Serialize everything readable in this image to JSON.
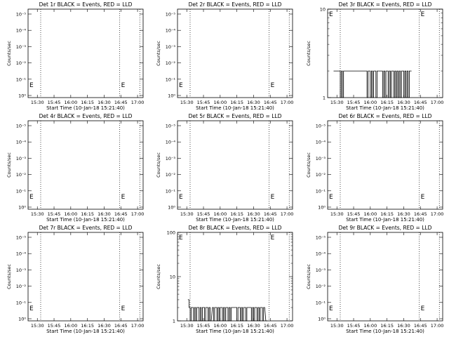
{
  "page": {
    "background": "#ffffff",
    "foreground": "#000000"
  },
  "chart_data": [
    {
      "type": "line",
      "title": "Det 1r BLACK = Events, RED = LLD",
      "xlabel": "Start Time (10-Jan-18 15:21:40)",
      "ylabel": "Counts/sec",
      "x_ticks": [
        "15:30",
        "15:45",
        "16:00",
        "16:15",
        "16:30",
        "16:45",
        "17:00"
      ],
      "xlim": [
        "15:21:40",
        "17:05:00"
      ],
      "y_scale": "log",
      "y_ticks": [
        "10⁰",
        "10⁻¹",
        "10⁻²",
        "10⁻³",
        "10⁻⁴",
        "10⁻⁵"
      ],
      "vlines": [
        "15:33",
        "16:44",
        "17:02"
      ],
      "markers": [
        "E",
        "E"
      ],
      "series": [
        {
          "name": "Events",
          "color": "#000000",
          "x": [],
          "y": []
        }
      ]
    },
    {
      "type": "line",
      "title": "Det 2r BLACK = Events, RED = LLD",
      "xlabel": "Start Time (10-Jan-18 15:21:40)",
      "ylabel": "Counts/sec",
      "x_ticks": [
        "15:30",
        "15:45",
        "16:00",
        "16:15",
        "16:30",
        "16:45",
        "17:00"
      ],
      "xlim": [
        "15:21:40",
        "17:05:00"
      ],
      "y_scale": "log",
      "y_ticks": [
        "10⁰",
        "10⁻¹",
        "10⁻²",
        "10⁻³",
        "10⁻⁴",
        "10⁻⁵"
      ],
      "vlines": [
        "15:33",
        "16:44",
        "17:02"
      ],
      "markers": [
        "E",
        "E"
      ],
      "series": [
        {
          "name": "Events",
          "color": "#000000",
          "x": [],
          "y": []
        }
      ]
    },
    {
      "type": "line",
      "title": "Det 3r BLACK = Events, RED = LLD",
      "xlabel": "Start Time (10-Jan-18 15:21:40)",
      "ylabel": "Counts/sec",
      "x_ticks": [
        "15:30",
        "15:45",
        "16:00",
        "16:15",
        "16:30",
        "16:45",
        "17:00"
      ],
      "xlim": [
        "15:21:40",
        "17:05:00"
      ],
      "y_scale": "log",
      "y_ticks": [
        "1",
        "10"
      ],
      "ylim": [
        1,
        10
      ],
      "vlines": [
        "15:33",
        "16:44",
        "17:02"
      ],
      "markers": [
        "E",
        "E"
      ],
      "series": [
        {
          "name": "Events",
          "color": "#000000",
          "x": [
            "15:27",
            "15:28",
            "15:29",
            "15:32",
            "15:33",
            "15:34",
            "15:35",
            "15:36",
            "15:56",
            "15:57",
            "15:58",
            "15:59",
            "16:00",
            "16:01",
            "16:02",
            "16:03",
            "16:04",
            "16:05",
            "16:06",
            "16:07",
            "16:10",
            "16:11",
            "16:12",
            "16:13",
            "16:14",
            "16:15",
            "16:16",
            "16:17",
            "16:18",
            "16:19",
            "16:20",
            "16:21",
            "16:22",
            "16:23",
            "16:24",
            "16:25",
            "16:26",
            "16:27",
            "16:28",
            "16:29",
            "16:30",
            "16:31",
            "16:32",
            "16:33",
            "16:34",
            "16:35",
            "16:36"
          ],
          "y": [
            2,
            2,
            2,
            2,
            1,
            2,
            1,
            2,
            2,
            1,
            2,
            2,
            1,
            2,
            1,
            2,
            2,
            1,
            2,
            2,
            2,
            1,
            2,
            1,
            2,
            2,
            1,
            2,
            1,
            2,
            2,
            1,
            2,
            1,
            2,
            1,
            2,
            1,
            2,
            2,
            1,
            2,
            1,
            2,
            1,
            2,
            2
          ]
        }
      ]
    },
    {
      "type": "line",
      "title": "Det 4r BLACK = Events, RED = LLD",
      "xlabel": "Start Time (10-Jan-18 15:21:40)",
      "ylabel": "Counts/sec",
      "x_ticks": [
        "15:30",
        "15:45",
        "16:00",
        "16:15",
        "16:30",
        "16:45",
        "17:00"
      ],
      "xlim": [
        "15:21:40",
        "17:05:00"
      ],
      "y_scale": "log",
      "y_ticks": [
        "10⁰",
        "10⁻¹",
        "10⁻²",
        "10⁻³",
        "10⁻⁴",
        "10⁻⁵"
      ],
      "vlines": [
        "15:33",
        "16:44",
        "17:02"
      ],
      "markers": [
        "E",
        "E"
      ],
      "series": [
        {
          "name": "Events",
          "color": "#000000",
          "x": [],
          "y": []
        }
      ]
    },
    {
      "type": "line",
      "title": "Det 5r BLACK = Events, RED = LLD",
      "xlabel": "Start Time (10-Jan-18 15:21:40)",
      "ylabel": "Counts/sec",
      "x_ticks": [
        "15:30",
        "15:45",
        "16:00",
        "16:15",
        "16:30",
        "16:45",
        "17:00"
      ],
      "xlim": [
        "15:21:40",
        "17:05:00"
      ],
      "y_scale": "log",
      "y_ticks": [
        "10⁰",
        "10⁻¹",
        "10⁻²",
        "10⁻³",
        "10⁻⁴",
        "10⁻⁵"
      ],
      "vlines": [
        "15:33",
        "16:44",
        "17:02"
      ],
      "markers": [
        "E",
        "E"
      ],
      "series": [
        {
          "name": "Events",
          "color": "#000000",
          "x": [],
          "y": []
        }
      ]
    },
    {
      "type": "line",
      "title": "Det 6r BLACK = Events, RED = LLD",
      "xlabel": "Start Time (10-Jan-18 15:21:40)",
      "ylabel": "Counts/sec",
      "x_ticks": [
        "15:30",
        "15:45",
        "16:00",
        "16:15",
        "16:30",
        "16:45",
        "17:00"
      ],
      "xlim": [
        "15:21:40",
        "17:05:00"
      ],
      "y_scale": "log",
      "y_ticks": [
        "10⁰",
        "10⁻¹",
        "10⁻²",
        "10⁻³",
        "10⁻⁴",
        "10⁻⁵"
      ],
      "vlines": [
        "15:33",
        "16:44",
        "17:02"
      ],
      "markers": [
        "E",
        "E"
      ],
      "series": [
        {
          "name": "Events",
          "color": "#000000",
          "x": [],
          "y": []
        }
      ]
    },
    {
      "type": "line",
      "title": "Det 7r BLACK = Events, RED = LLD",
      "xlabel": "Start Time (10-Jan-18 15:21:40)",
      "ylabel": "Counts/sec",
      "x_ticks": [
        "15:30",
        "15:45",
        "16:00",
        "16:15",
        "16:30",
        "16:45",
        "17:00"
      ],
      "xlim": [
        "15:21:40",
        "17:05:00"
      ],
      "y_scale": "log",
      "y_ticks": [
        "10⁰",
        "10⁻¹",
        "10⁻²",
        "10⁻³",
        "10⁻⁴",
        "10⁻⁵"
      ],
      "vlines": [
        "15:33",
        "16:44",
        "17:02"
      ],
      "markers": [
        "E",
        "E"
      ],
      "series": [
        {
          "name": "Events",
          "color": "#000000",
          "x": [],
          "y": []
        }
      ]
    },
    {
      "type": "line",
      "title": "Det 8r BLACK = Events, RED = LLD",
      "xlabel": "Start Time (10-Jan-18 15:21:40)",
      "ylabel": "Counts/sec",
      "x_ticks": [
        "15:30",
        "15:45",
        "16:00",
        "16:15",
        "16:30",
        "16:45",
        "17:00"
      ],
      "xlim": [
        "15:21:40",
        "17:05:00"
      ],
      "y_scale": "log",
      "y_ticks": [
        "1",
        "10",
        "100"
      ],
      "ylim": [
        1,
        100
      ],
      "vlines": [
        "15:33",
        "16:44",
        "17:02"
      ],
      "markers": [
        "E",
        "E"
      ],
      "series": [
        {
          "name": "Events",
          "color": "#000000",
          "x": [
            "15:31",
            "15:32",
            "15:33",
            "15:34",
            "15:35",
            "15:36",
            "15:37",
            "15:38",
            "15:39",
            "15:40",
            "15:41",
            "15:42",
            "15:43",
            "15:44",
            "15:45",
            "15:46",
            "15:47",
            "15:48",
            "15:49",
            "15:50",
            "15:51",
            "15:53",
            "15:54",
            "15:55",
            "15:56",
            "15:57",
            "15:58",
            "15:59",
            "16:00",
            "16:01",
            "16:02",
            "16:03",
            "16:04",
            "16:05",
            "16:06",
            "16:07",
            "16:08",
            "16:09",
            "16:10",
            "16:11",
            "16:14",
            "16:15",
            "16:16",
            "16:17",
            "16:18",
            "16:19",
            "16:20",
            "16:21",
            "16:22",
            "16:23",
            "16:24",
            "16:25",
            "16:27",
            "16:28",
            "16:29",
            "16:30",
            "16:31",
            "16:32",
            "16:33",
            "16:34",
            "16:35",
            "16:36",
            "16:37",
            "16:38",
            "16:39",
            "16:41"
          ],
          "y": [
            3,
            2,
            1,
            2,
            2,
            1,
            2,
            1,
            2,
            2,
            1,
            2,
            1,
            2,
            2,
            1,
            2,
            2,
            1,
            2,
            1,
            2,
            1,
            2,
            2,
            1,
            2,
            1,
            2,
            2,
            1,
            2,
            1,
            2,
            2,
            1,
            2,
            1,
            2,
            2,
            2,
            1,
            2,
            2,
            1,
            2,
            1,
            2,
            2,
            1,
            2,
            2,
            2,
            1,
            2,
            1,
            2,
            2,
            1,
            2,
            1,
            2,
            2,
            1,
            2,
            1
          ]
        }
      ]
    },
    {
      "type": "line",
      "title": "Det 9r BLACK = Events, RED = LLD",
      "xlabel": "Start Time (10-Jan-18 15:21:40)",
      "ylabel": "Counts/sec",
      "x_ticks": [
        "15:30",
        "15:45",
        "16:00",
        "16:15",
        "16:30",
        "16:45",
        "17:00"
      ],
      "xlim": [
        "15:21:40",
        "17:05:00"
      ],
      "y_scale": "log",
      "y_ticks": [
        "10⁰",
        "10⁻¹",
        "10⁻²",
        "10⁻³",
        "10⁻⁴",
        "10⁻⁵"
      ],
      "vlines": [
        "15:33",
        "16:44",
        "17:02"
      ],
      "markers": [
        "E",
        "E"
      ],
      "series": [
        {
          "name": "Events",
          "color": "#000000",
          "x": [],
          "y": []
        }
      ]
    }
  ]
}
